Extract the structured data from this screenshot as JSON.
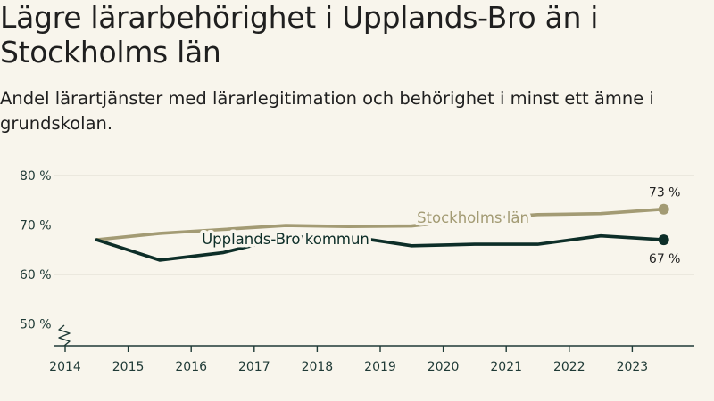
{
  "title": "Lägre lärarbehörighet i Upplands-Bro än i Stockholms län",
  "subtitle": "Andel lärartjänster med lärarlegitimation och behörighet i minst ett ämne i grundskolan.",
  "colors": {
    "background": "#f8f5ec",
    "stockholm": "#a39b74",
    "upplands": "#0d2e28",
    "grid": "#dedbd0",
    "axis": "#1f3a36"
  },
  "chart_data": {
    "type": "line",
    "title": "Lägre lärarbehörighet i Upplands-Bro än i Stockholms län",
    "subtitle": "Andel lärartjänster med lärarlegitimation och behörighet i minst ett ämne i grundskolan.",
    "xlabel": "",
    "ylabel": "",
    "x_ticks": [
      "2014",
      "2015",
      "2016",
      "2017",
      "2018",
      "2019",
      "2020",
      "2021",
      "2022",
      "2023"
    ],
    "y_ticks": [
      "50 %",
      "60 %",
      "70 %",
      "80 %"
    ],
    "ylim": [
      50,
      80
    ],
    "y_axis_break": true,
    "grid": true,
    "x": [
      2014.5,
      2015.5,
      2016.5,
      2017.5,
      2018.5,
      2019.5,
      2020.5,
      2021.5,
      2022.5,
      2023.5
    ],
    "series": [
      {
        "name": "Stockholms län",
        "values": [
          67.0,
          68.3,
          69.1,
          69.9,
          69.7,
          69.8,
          71.2,
          72.1,
          72.3,
          73.2
        ],
        "end_label": "73 %"
      },
      {
        "name": "Upplands-Bro kommun",
        "values": [
          67.0,
          62.9,
          64.4,
          67.5,
          67.7,
          65.8,
          66.1,
          66.1,
          67.8,
          67.0
        ],
        "end_label": "67 %"
      }
    ]
  }
}
